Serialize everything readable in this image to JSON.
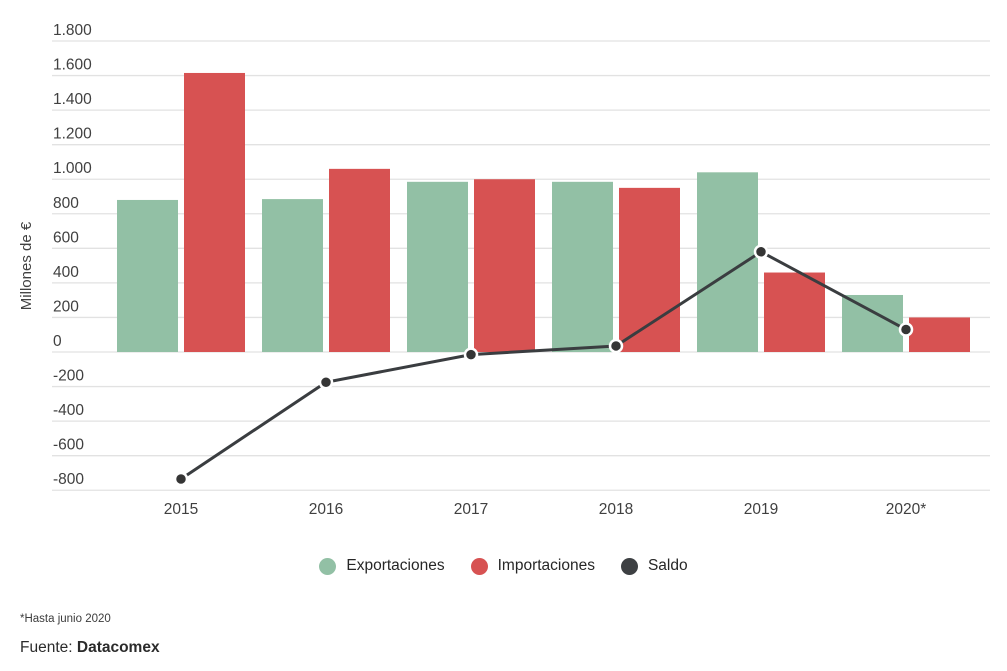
{
  "chart_data": {
    "type": "combo-bar-line",
    "title": "",
    "xlabel": "",
    "ylabel": "Millones de €",
    "categories": [
      "2015",
      "2016",
      "2017",
      "2018",
      "2019",
      "2020*"
    ],
    "series": [
      {
        "name": "Exportaciones",
        "type": "bar",
        "color": "#92c0a5",
        "values": [
          880,
          885,
          985,
          985,
          1040,
          330
        ]
      },
      {
        "name": "Importaciones",
        "type": "bar",
        "color": "#d75252",
        "values": [
          1615,
          1060,
          1000,
          950,
          460,
          200
        ]
      },
      {
        "name": "Saldo",
        "type": "line",
        "color": "#3a3d40",
        "values": [
          -735,
          -175,
          -15,
          35,
          580,
          130
        ]
      }
    ],
    "ylim": [
      -800,
      1800
    ],
    "ytick_step": 200,
    "yticks": [
      {
        "value": 1800,
        "label": "1.800"
      },
      {
        "value": 1600,
        "label": "1.600"
      },
      {
        "value": 1400,
        "label": "1.400"
      },
      {
        "value": 1200,
        "label": "1.200"
      },
      {
        "value": 1000,
        "label": "1.000"
      },
      {
        "value": 800,
        "label": "800"
      },
      {
        "value": 600,
        "label": "600"
      },
      {
        "value": 400,
        "label": "400"
      },
      {
        "value": 200,
        "label": "200"
      },
      {
        "value": 0,
        "label": "0"
      },
      {
        "value": -200,
        "label": "-200"
      },
      {
        "value": -400,
        "label": "-400"
      },
      {
        "value": -600,
        "label": "-600"
      },
      {
        "value": -800,
        "label": "-800"
      }
    ],
    "grid": true,
    "legend_position": "bottom"
  },
  "legend": {
    "items": [
      {
        "label": "Exportaciones",
        "color": "#92c0a5"
      },
      {
        "label": "Importaciones",
        "color": "#d75252"
      },
      {
        "label": "Saldo",
        "color": "#3d4043"
      }
    ]
  },
  "footer": {
    "note": "*Hasta junio 2020",
    "source_label": "Fuente:",
    "source_value": "Datacomex"
  },
  "colors": {
    "exportaciones": "#92c0a5",
    "importaciones": "#d75252",
    "saldo": "#3a3d40",
    "grid": "#e2e2e2",
    "text": "#404040",
    "background": "#ffffff"
  }
}
